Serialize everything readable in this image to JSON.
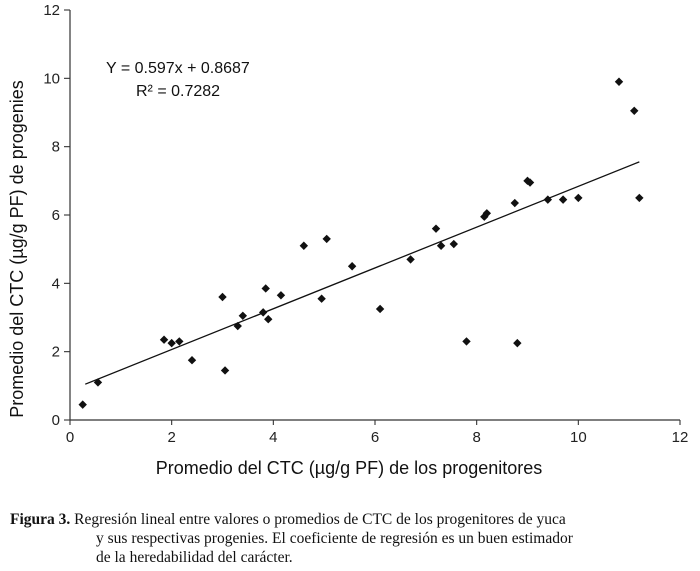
{
  "chart_data": {
    "type": "scatter",
    "xlabel": "Promedio del CTC (µg/g PF) de los progenitores",
    "ylabel": "Promedio del CTC (µg/g PF) de progenies",
    "xlim": [
      0,
      12
    ],
    "ylim": [
      0,
      12
    ],
    "xticks": [
      "0",
      "2",
      "4",
      "6",
      "8",
      "10",
      "12"
    ],
    "yticks": [
      "0",
      "2",
      "4",
      "6",
      "8",
      "10",
      "12"
    ],
    "grid": false,
    "equation": "Y = 0.597x + 0.8687",
    "r_squared": "R² = 0.7282",
    "trendline": {
      "slope": 0.597,
      "intercept": 0.8687,
      "x_range": [
        0.3,
        11.2
      ]
    },
    "points": [
      [
        0.25,
        0.45
      ],
      [
        0.55,
        1.1
      ],
      [
        1.85,
        2.35
      ],
      [
        2.0,
        2.25
      ],
      [
        2.15,
        2.3
      ],
      [
        2.4,
        1.75
      ],
      [
        3.0,
        3.6
      ],
      [
        3.05,
        1.45
      ],
      [
        3.3,
        2.75
      ],
      [
        3.4,
        3.05
      ],
      [
        3.8,
        3.15
      ],
      [
        3.85,
        3.85
      ],
      [
        3.9,
        2.95
      ],
      [
        4.15,
        3.65
      ],
      [
        4.6,
        5.1
      ],
      [
        4.95,
        3.55
      ],
      [
        5.05,
        5.3
      ],
      [
        5.55,
        4.5
      ],
      [
        6.1,
        3.25
      ],
      [
        6.7,
        4.7
      ],
      [
        7.2,
        5.6
      ],
      [
        7.3,
        5.1
      ],
      [
        7.55,
        5.15
      ],
      [
        7.8,
        2.3
      ],
      [
        8.15,
        5.95
      ],
      [
        8.2,
        6.05
      ],
      [
        8.75,
        6.35
      ],
      [
        8.8,
        2.25
      ],
      [
        9.0,
        7.0
      ],
      [
        9.05,
        6.95
      ],
      [
        9.4,
        6.45
      ],
      [
        9.7,
        6.45
      ],
      [
        10.0,
        6.5
      ],
      [
        10.8,
        9.9
      ],
      [
        11.1,
        9.05
      ],
      [
        11.2,
        6.5
      ]
    ]
  },
  "caption": {
    "label": "Figura 3.",
    "line1": "Regresión lineal entre valores o promedios de CTC de los progenitores de yuca",
    "line2": "y sus respectivas progenies. El coeficiente de regresión es un buen estimador",
    "line3": "de la heredabilidad del carácter."
  }
}
